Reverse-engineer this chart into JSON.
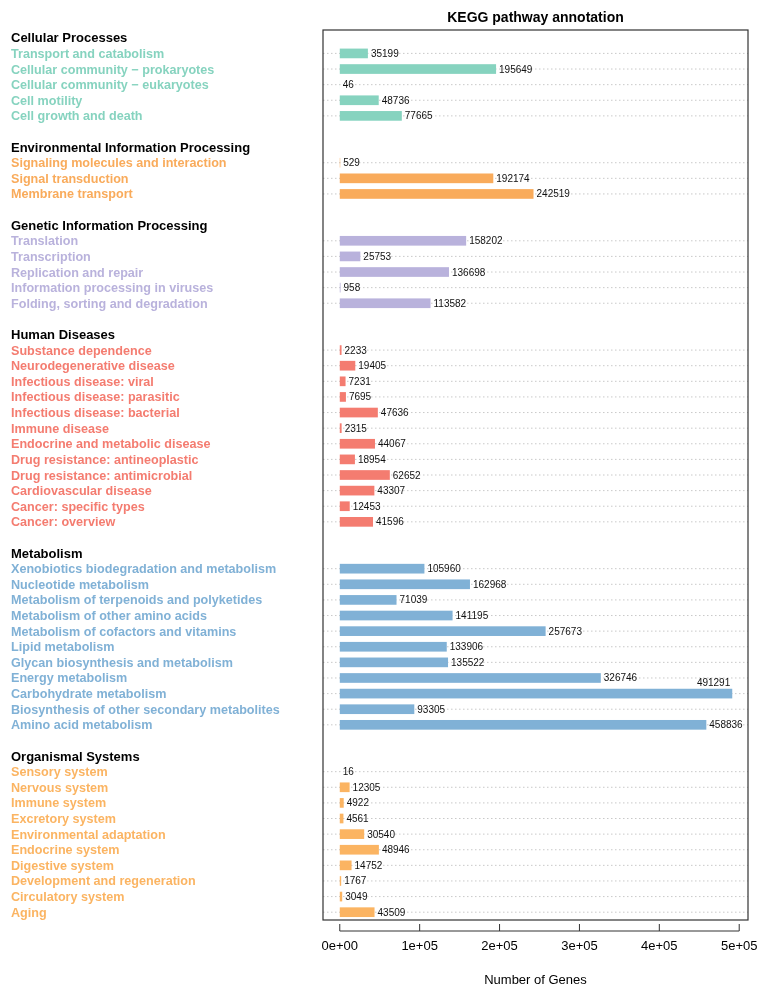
{
  "chart_data": {
    "type": "bar",
    "orientation": "horizontal",
    "title": "KEGG pathway annotation",
    "xlabel": "Number of Genes",
    "categories": [
      "Cellular Processes",
      "Transport and catabolism",
      "Cellular community − prokaryotes",
      "Cellular community − eukaryotes",
      "Cell motility",
      "Cell growth and death",
      null,
      "Environmental Information Processing",
      "Signaling molecules and interaction",
      "Signal transduction",
      "Membrane transport",
      null,
      "Genetic Information Processing",
      "Translation",
      "Transcription",
      "Replication and repair",
      "Information processing in viruses",
      "Folding, sorting and degradation",
      null,
      "Human Diseases",
      "Substance dependence",
      "Neurodegenerative disease",
      "Infectious disease: viral",
      "Infectious disease: parasitic",
      "Infectious disease: bacterial",
      "Immune disease",
      "Endocrine and metabolic disease",
      "Drug resistance: antineoplastic",
      "Drug resistance: antimicrobial",
      "Cardiovascular disease",
      "Cancer: specific types",
      "Cancer: overview",
      null,
      "Metabolism",
      "Xenobiotics biodegradation and metabolism",
      "Nucleotide metabolism",
      "Metabolism of terpenoids and polyketides",
      "Metabolism of other amino acids",
      "Metabolism of cofactors and vitamins",
      "Lipid metabolism",
      "Glycan biosynthesis and metabolism",
      "Energy metabolism",
      "Carbohydrate metabolism",
      "Biosynthesis of other secondary metabolites",
      "Amino acid metabolism",
      null,
      "Organismal Systems",
      "Sensory system",
      "Nervous system",
      "Immune system",
      "Excretory system",
      "Environmental adaptation",
      "Endocrine system",
      "Digestive system",
      "Development and regeneration",
      "Circulatory system",
      "Aging"
    ],
    "series": [
      {
        "color": "#86d3bf",
        "values": [
          null,
          35199,
          195649,
          46,
          48736,
          77665,
          null,
          null,
          null,
          null,
          null,
          null,
          null,
          null,
          null,
          null,
          null,
          null,
          null,
          null,
          null,
          null,
          null,
          null,
          null,
          null,
          null,
          null,
          null,
          null,
          null,
          null,
          null,
          null,
          null,
          null,
          null,
          null,
          null,
          null,
          null,
          null,
          null,
          null,
          null,
          null,
          null,
          null,
          null,
          null,
          null,
          null,
          null,
          null,
          null,
          null,
          null
        ]
      },
      {
        "color": "#f9ab5b",
        "values": [
          null,
          null,
          null,
          null,
          null,
          null,
          null,
          null,
          529,
          192174,
          242519,
          null,
          null,
          null,
          null,
          null,
          null,
          null,
          null,
          null,
          null,
          null,
          null,
          null,
          null,
          null,
          null,
          null,
          null,
          null,
          null,
          null,
          null,
          null,
          null,
          null,
          null,
          null,
          null,
          null,
          null,
          null,
          null,
          null,
          null,
          null,
          null,
          null,
          null,
          null,
          null,
          null,
          null,
          null,
          null,
          null,
          null
        ]
      },
      {
        "color": "#b9b2dc",
        "values": [
          null,
          null,
          null,
          null,
          null,
          null,
          null,
          null,
          null,
          null,
          null,
          null,
          null,
          158202,
          25753,
          136698,
          958,
          113582,
          null,
          null,
          null,
          null,
          null,
          null,
          null,
          null,
          null,
          null,
          null,
          null,
          null,
          null,
          null,
          null,
          null,
          null,
          null,
          null,
          null,
          null,
          null,
          null,
          null,
          null,
          null,
          null,
          null,
          null,
          null,
          null,
          null,
          null,
          null,
          null,
          null,
          null,
          null
        ]
      },
      {
        "color": "#f47c70",
        "values": [
          null,
          null,
          null,
          null,
          null,
          null,
          null,
          null,
          null,
          null,
          null,
          null,
          null,
          null,
          null,
          null,
          null,
          null,
          null,
          null,
          2233,
          19405,
          7231,
          7695,
          47636,
          2315,
          44067,
          18954,
          62652,
          43307,
          12453,
          41596,
          null,
          null,
          null,
          null,
          null,
          null,
          null,
          null,
          null,
          null,
          null,
          null,
          null,
          null,
          null,
          null,
          null,
          null,
          null,
          null,
          null,
          null,
          null,
          null,
          null
        ]
      },
      {
        "color": "#80b1d6",
        "values": [
          null,
          null,
          null,
          null,
          null,
          null,
          null,
          null,
          null,
          null,
          null,
          null,
          null,
          null,
          null,
          null,
          null,
          null,
          null,
          null,
          null,
          null,
          null,
          null,
          null,
          null,
          null,
          null,
          null,
          null,
          null,
          null,
          null,
          null,
          105960,
          162968,
          71039,
          141195,
          257673,
          133906,
          135522,
          326746,
          491291,
          93305,
          458836,
          null,
          null,
          null,
          null,
          null,
          null,
          null,
          null,
          null,
          null,
          null,
          null
        ]
      },
      {
        "color": "#fbb462",
        "values": [
          null,
          null,
          null,
          null,
          null,
          null,
          null,
          null,
          null,
          null,
          null,
          null,
          null,
          null,
          null,
          null,
          null,
          null,
          null,
          null,
          null,
          null,
          null,
          null,
          null,
          null,
          null,
          null,
          null,
          null,
          null,
          null,
          null,
          null,
          null,
          null,
          null,
          null,
          null,
          null,
          null,
          null,
          null,
          null,
          null,
          null,
          null,
          16,
          12305,
          4922,
          4561,
          30540,
          48946,
          14752,
          1767,
          3049,
          43509
        ]
      }
    ],
    "xlim": [
      -21000,
      511000
    ],
    "xticks": [
      {
        "value": 0,
        "label": "0e+00"
      },
      {
        "value": 100000,
        "label": "1e+05"
      },
      {
        "value": 200000,
        "label": "2e+05"
      },
      {
        "value": 300000,
        "label": "3e+05"
      },
      {
        "value": 400000,
        "label": "4e+05"
      },
      {
        "value": 500000,
        "label": "5e+05"
      }
    ],
    "grid": "y",
    "data_labels": true
  }
}
